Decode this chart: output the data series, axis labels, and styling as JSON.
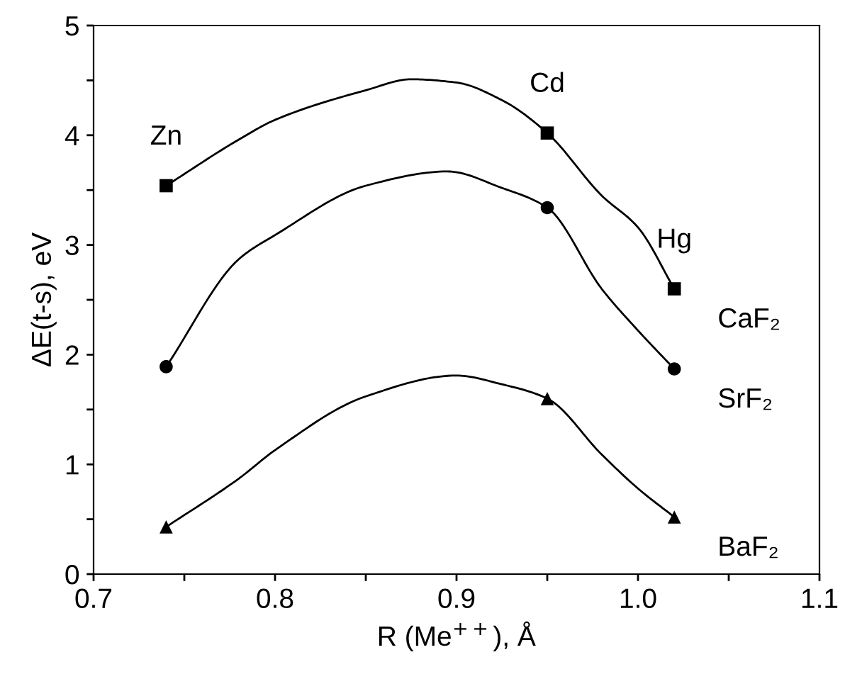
{
  "chart_data": {
    "type": "scatter",
    "xlabel": "R (Me$^{++}$), Å",
    "ylabel": "ΔE(t-s), eV",
    "xlim": [
      0.7,
      1.1
    ],
    "ylim": [
      0,
      5
    ],
    "xticks": [
      0.7,
      {
        "value": 0.75,
        "label": null
      },
      0.8,
      {
        "value": 0.85,
        "label": null
      },
      0.9,
      {
        "value": 0.95,
        "label": null
      },
      "1.0",
      {
        "value": 1.05,
        "label": null
      },
      1.1
    ],
    "yticks": [
      0,
      {
        "value": 0.5,
        "label": null
      },
      1,
      {
        "value": 1.5,
        "label": null
      },
      2,
      {
        "value": 2.5,
        "label": null
      },
      3,
      {
        "value": 3.5,
        "label": null
      },
      4,
      {
        "value": 4.5,
        "label": null
      },
      5
    ],
    "grid": false,
    "legend": false,
    "series": [
      {
        "name": "CaF₂",
        "marker": "square",
        "color": "#000000",
        "x": [
          0.74,
          0.95,
          1.02
        ],
        "values": [
          3.54,
          4.02,
          2.6
        ]
      },
      {
        "name": "SrF₂",
        "marker": "circle",
        "color": "#000000",
        "x": [
          0.74,
          0.95,
          1.02
        ],
        "values": [
          1.89,
          3.34,
          1.87
        ]
      },
      {
        "name": "BaF₂",
        "marker": "triangle",
        "color": "#000000",
        "x": [
          0.74,
          0.95,
          1.02
        ],
        "values": [
          0.43,
          1.6,
          0.52
        ]
      },
      {
        "type": "line",
        "marker": "none",
        "line_style": "solid",
        "color": "#000000",
        "x": [
          0.74,
          0.78,
          0.8,
          0.85,
          0.875,
          0.9,
          0.925,
          0.95,
          0.98,
          1.0,
          1.02
        ],
        "values": [
          3.54,
          3.96,
          4.14,
          4.41,
          4.51,
          4.48,
          4.32,
          4.02,
          3.45,
          3.16,
          2.6
        ]
      },
      {
        "type": "line",
        "marker": "none",
        "line_style": "solid",
        "color": "#000000",
        "x": [
          0.74,
          0.78,
          0.8,
          0.85,
          0.895,
          0.925,
          0.95,
          0.98,
          1.0,
          1.02
        ],
        "values": [
          1.89,
          2.87,
          3.09,
          3.54,
          3.67,
          3.52,
          3.34,
          2.6,
          2.22,
          1.87
        ]
      },
      {
        "type": "line",
        "marker": "none",
        "line_style": "solid",
        "color": "#000000",
        "x": [
          0.74,
          0.78,
          0.8,
          0.85,
          0.9,
          0.925,
          0.95,
          0.98,
          1.0,
          1.02
        ],
        "values": [
          0.43,
          0.87,
          1.13,
          1.62,
          1.81,
          1.73,
          1.6,
          1.09,
          0.78,
          0.52
        ]
      }
    ],
    "annotations": [
      {
        "text": "Zn",
        "x": 0.74,
        "y": 3.54
      },
      {
        "text": "Cd",
        "x": 0.95,
        "y": 4.02
      },
      {
        "text": "Hg",
        "x": 1.02,
        "y": 2.6
      }
    ]
  }
}
